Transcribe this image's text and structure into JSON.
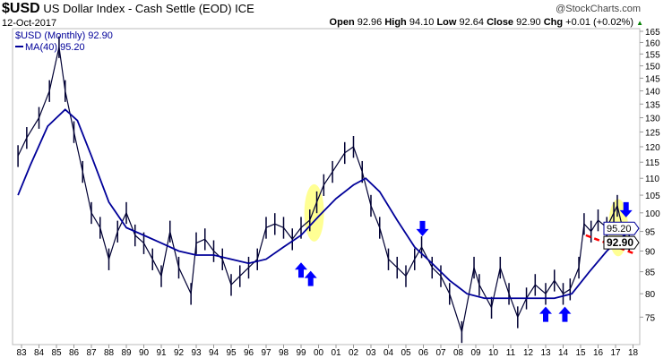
{
  "header": {
    "symbol": "$USD",
    "name": "US Dollar Index - Cash Settle (EOD)",
    "exchange": "ICE",
    "date": "12-Oct-2017",
    "watermark": "@StockCharts.com",
    "open_label": "Open",
    "open": "92.96",
    "high_label": "High",
    "high": "94.10",
    "low_label": "Low",
    "low": "92.64",
    "close_label": "Close",
    "close": "92.90",
    "chg_label": "Chg",
    "chg": "+0.01 (+0.02%)",
    "up_icon": "triangle-up"
  },
  "legend": {
    "price": "$USD (Monthly) 92.90",
    "ma": "MA(40) 95.20"
  },
  "colors": {
    "price": "#000033",
    "ma": "#000099",
    "arrow": "#0000ff",
    "highlight": "#ffff66",
    "support": "#ff0000"
  },
  "chart_data": {
    "type": "line",
    "title": "$USD US Dollar Index - Cash Settle (EOD)",
    "y_scale": "log",
    "ylim": [
      70,
      167
    ],
    "xlim": [
      1982.8,
      2018.2
    ],
    "y_ticks": [
      165,
      160,
      155,
      150,
      145,
      140,
      135,
      130,
      125,
      120,
      115,
      110,
      105,
      100,
      95,
      90,
      85,
      80,
      75
    ],
    "x_ticks": [
      "83",
      "84",
      "85",
      "86",
      "87",
      "88",
      "89",
      "90",
      "91",
      "92",
      "93",
      "94",
      "95",
      "96",
      "97",
      "98",
      "99",
      "00",
      "01",
      "02",
      "03",
      "04",
      "05",
      "06",
      "07",
      "08",
      "09",
      "10",
      "11",
      "12",
      "13",
      "14",
      "15",
      "16",
      "17",
      "18"
    ],
    "series": [
      {
        "name": "$USD (Monthly)",
        "x": [
          1982.8,
          1983.3,
          1984,
          1984.6,
          1985.15,
          1985.5,
          1986,
          1986.5,
          1987,
          1987.5,
          1988,
          1988.5,
          1989,
          1989.5,
          1990,
          1990.5,
          1991,
          1991.5,
          1992,
          1992.7,
          1993,
          1993.5,
          1994,
          1994.5,
          1995,
          1995.5,
          1996,
          1996.5,
          1997,
          1997.5,
          1998,
          1998.5,
          1999,
          1999.5,
          1999.9,
          2000.3,
          2000.8,
          2001.5,
          2002,
          2002.5,
          2003,
          2003.5,
          2004,
          2004.5,
          2005,
          2005.5,
          2005.9,
          2006.5,
          2007,
          2007.5,
          2008.2,
          2008.9,
          2009.2,
          2009.9,
          2010.4,
          2010.9,
          2011.4,
          2011.9,
          2012.4,
          2013,
          2013.5,
          2014,
          2014.4,
          2014.9,
          2015.2,
          2015.6,
          2016,
          2016.5,
          2016.9,
          2017.1,
          2017.5,
          2017.78
        ],
        "values": [
          117,
          123,
          130,
          140,
          158,
          140,
          125,
          112,
          100,
          96,
          88,
          95,
          100,
          94,
          92,
          88,
          84,
          95,
          86,
          80,
          92,
          93,
          90,
          88,
          82,
          84,
          86,
          88,
          96,
          97,
          96,
          93,
          96,
          98,
          103,
          108,
          112,
          118,
          120,
          112,
          102,
          96,
          88,
          86,
          84,
          88,
          91,
          86,
          84,
          80,
          72,
          86,
          82,
          77,
          86,
          80,
          75,
          79,
          82,
          80,
          83,
          80,
          81,
          86,
          97,
          95,
          98,
          96,
          100,
          102,
          94,
          92.9
        ]
      },
      {
        "name": "MA(40)",
        "x": [
          1982.8,
          1983.5,
          1984.5,
          1985.5,
          1986.2,
          1987,
          1988,
          1989,
          1990,
          1991,
          1992,
          1993,
          1994,
          1995,
          1996,
          1997,
          1998,
          1999,
          2000,
          2001,
          2002,
          2002.7,
          2003.5,
          2004.5,
          2005.5,
          2006.5,
          2007.5,
          2008.5,
          2009.5,
          2010.5,
          2011.5,
          2012.5,
          2013.5,
          2014.5,
          2015.5,
          2016.5,
          2017.78
        ],
        "values": [
          105,
          114,
          127,
          133,
          129,
          117,
          103,
          96,
          94,
          92,
          90,
          89,
          89,
          88,
          87,
          88,
          91,
          94,
          99,
          104,
          108,
          110,
          106,
          98,
          91,
          87,
          83,
          80,
          79,
          79,
          79,
          79,
          79,
          80,
          85,
          90,
          95.2
        ]
      }
    ],
    "annotations": {
      "price_tag": "92.90",
      "ma_tag": "95.20",
      "up_arrows": [
        [
          1999.0,
          87
        ],
        [
          1999.55,
          85
        ],
        [
          2013.0,
          77
        ],
        [
          2014.1,
          77
        ]
      ],
      "down_arrows": [
        [
          2005.95,
          94
        ],
        [
          2017.6,
          99
        ]
      ],
      "highlight_ellipses": [
        [
          1999.75,
          100
        ],
        [
          2017.15,
          96
        ]
      ],
      "support_line": [
        [
          2015.3,
          94
        ],
        [
          2018.0,
          89.5
        ]
      ]
    }
  }
}
